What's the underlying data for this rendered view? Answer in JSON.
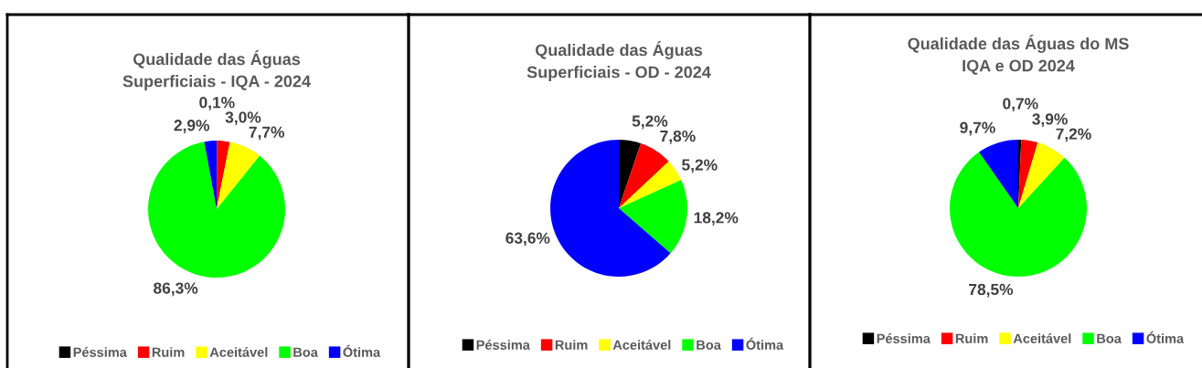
{
  "chart_data": [
    {
      "type": "pie",
      "title": "Qualidade das Águas\nSuperficiais - IQA - 2024",
      "categories": [
        "Péssima",
        "Ruim",
        "Aceitável",
        "Boa",
        "Ótima"
      ],
      "values": [
        0.1,
        3.0,
        7.7,
        86.3,
        2.9
      ],
      "colors": [
        "#000000",
        "#ff0000",
        "#ffff00",
        "#00ff00",
        "#0000ff"
      ],
      "value_labels": [
        "0,1%",
        "3,0%",
        "7,7%",
        "86,3%",
        "2,9%"
      ],
      "legend": "bottom"
    },
    {
      "type": "pie",
      "title": "Qualidade das Águas\nSuperficiais - OD - 2024",
      "categories": [
        "Péssima",
        "Ruim",
        "Aceitável",
        "Boa",
        "Ótima"
      ],
      "values": [
        5.2,
        7.8,
        5.2,
        18.2,
        63.6
      ],
      "colors": [
        "#000000",
        "#ff0000",
        "#ffff00",
        "#00ff00",
        "#0000ff"
      ],
      "value_labels": [
        "5,2%",
        "7,8%",
        "5,2%",
        "18,2%",
        "63,6%"
      ],
      "legend": "bottom"
    },
    {
      "type": "pie",
      "title": "Qualidade das Águas do MS\nIQA e OD 2024",
      "categories": [
        "Péssima",
        "Ruim",
        "Aceitável",
        "Boa",
        "Ótima"
      ],
      "values": [
        0.7,
        3.9,
        7.2,
        78.5,
        9.7
      ],
      "colors": [
        "#000000",
        "#ff0000",
        "#ffff00",
        "#00ff00",
        "#0000ff"
      ],
      "value_labels": [
        "0,7%",
        "3,9%",
        "7,2%",
        "78,5%",
        "9,7%"
      ],
      "legend": "bottom"
    }
  ]
}
